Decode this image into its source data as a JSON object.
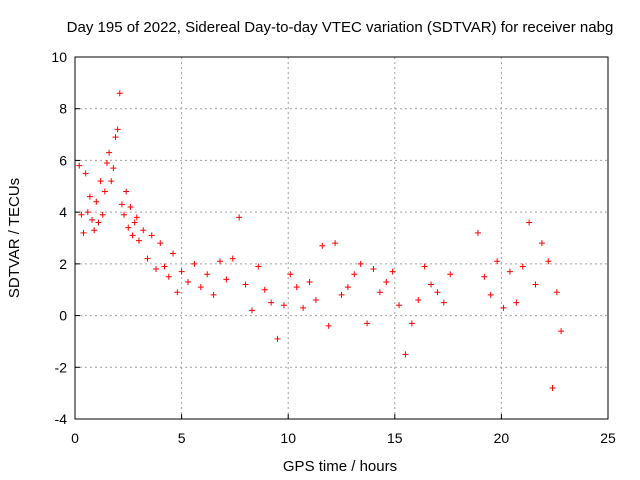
{
  "chart_data": {
    "type": "scatter",
    "title": "Day 195 of 2022, Sidereal Day-to-day VTEC variation (SDTVAR) for receiver nabg",
    "xlabel": "GPS time / hours",
    "ylabel": "SDTVAR / TECUs",
    "xlim": [
      0,
      25
    ],
    "ylim": [
      -4,
      10
    ],
    "xticks": [
      "0",
      "5",
      "10",
      "15",
      "20",
      "25"
    ],
    "yticks": [
      "-4",
      "-2",
      "0",
      "2",
      "4",
      "6",
      "8",
      "10"
    ],
    "grid": true,
    "marker": "+",
    "color": "#ff0000",
    "series": [
      {
        "name": "SDTVAR",
        "x": [
          0.2,
          0.3,
          0.4,
          0.5,
          0.6,
          0.7,
          0.8,
          0.9,
          1.0,
          1.1,
          1.2,
          1.3,
          1.4,
          1.5,
          1.6,
          1.7,
          1.8,
          1.9,
          2.0,
          2.1,
          2.2,
          2.3,
          2.4,
          2.5,
          2.6,
          2.7,
          2.8,
          2.9,
          3.0,
          3.2,
          3.4,
          3.6,
          3.8,
          4.0,
          4.2,
          4.4,
          4.6,
          4.8,
          5.0,
          5.3,
          5.6,
          5.9,
          6.2,
          6.5,
          6.8,
          7.1,
          7.4,
          7.7,
          8.0,
          8.3,
          8.6,
          8.9,
          9.2,
          9.5,
          9.8,
          10.1,
          10.4,
          10.7,
          11.0,
          11.3,
          11.6,
          11.9,
          12.2,
          12.5,
          12.8,
          13.1,
          13.4,
          13.7,
          14.0,
          14.3,
          14.6,
          14.9,
          15.2,
          15.5,
          15.8,
          16.1,
          16.4,
          16.7,
          17.0,
          17.3,
          17.6,
          18.9,
          19.2,
          19.5,
          19.8,
          20.1,
          20.4,
          20.7,
          21.0,
          21.3,
          21.6,
          21.9,
          22.2,
          22.4,
          22.6,
          22.8
        ],
        "y": [
          5.8,
          3.9,
          3.2,
          5.5,
          4.0,
          4.6,
          3.7,
          3.3,
          4.4,
          3.6,
          5.2,
          3.9,
          4.8,
          5.9,
          6.3,
          5.2,
          5.7,
          6.9,
          7.2,
          8.6,
          4.3,
          3.9,
          4.8,
          3.4,
          4.2,
          3.1,
          3.6,
          3.8,
          2.9,
          3.3,
          2.2,
          3.1,
          1.8,
          2.8,
          1.9,
          1.5,
          2.4,
          0.9,
          1.7,
          1.3,
          2.0,
          1.1,
          1.6,
          0.8,
          2.1,
          1.4,
          2.2,
          3.8,
          1.2,
          0.2,
          1.9,
          1.0,
          0.5,
          -0.9,
          0.4,
          1.6,
          1.1,
          0.3,
          1.3,
          0.6,
          2.7,
          -0.4,
          2.8,
          0.8,
          1.1,
          1.6,
          2.0,
          -0.3,
          1.8,
          0.9,
          1.3,
          1.7,
          0.4,
          -1.5,
          -0.3,
          0.6,
          1.9,
          1.2,
          0.9,
          0.5,
          1.6,
          3.2,
          1.5,
          0.8,
          2.1,
          0.3,
          1.7,
          0.5,
          1.9,
          3.6,
          1.2,
          2.8,
          2.1,
          -2.8,
          0.9,
          -0.6
        ]
      }
    ]
  }
}
